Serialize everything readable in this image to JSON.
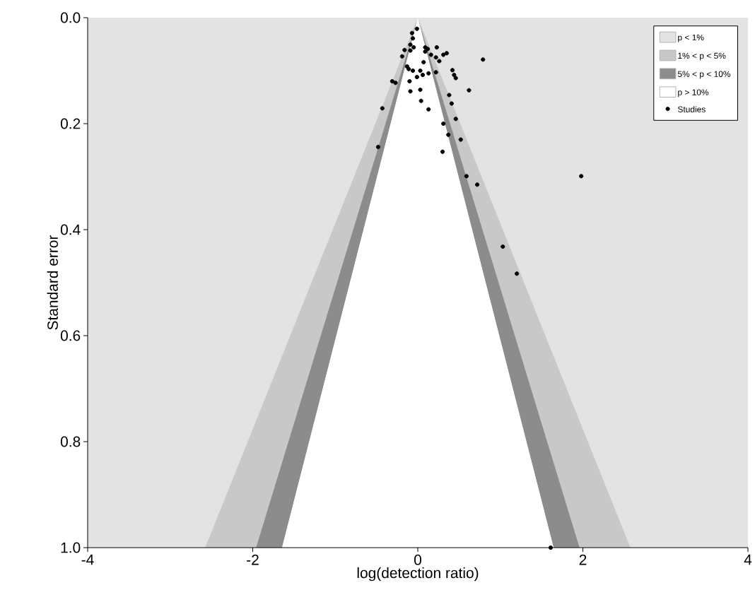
{
  "chart_data": {
    "type": "scatter",
    "xlabel": "log(detection ratio)",
    "ylabel": "Standard error",
    "xlim": [
      -4,
      4
    ],
    "ylim": [
      1,
      0
    ],
    "xticks": [
      -4,
      -2,
      0,
      2,
      4
    ],
    "yticks": [
      {
        "value": 0,
        "label": "0.0"
      },
      0.2,
      0.4,
      0.6,
      0.8,
      {
        "value": 1,
        "label": "1.0"
      }
    ],
    "legend": "top right",
    "grid": false,
    "bands": [
      {
        "axis": "y",
        "from": 0,
        "to": 1,
        "label": "p < 1%",
        "color": "#e3e3e3"
      }
    ],
    "series": [
      {
        "name": "Studies",
        "marker": "circle",
        "color": "#000000",
        "x": [
          -0.01,
          -0.07,
          -0.06,
          -0.09,
          -0.05,
          -0.16,
          -0.09,
          0.09,
          0.12,
          0.09,
          0.23,
          0.16,
          -0.19,
          0.22,
          0.31,
          0.35,
          0.26,
          0.79,
          0.07,
          -0.13,
          -0.11,
          -0.06,
          0.03,
          -0.01,
          0.06,
          0.13,
          0.22,
          0.42,
          0.44,
          0.46,
          -0.31,
          -0.27,
          -0.1,
          0.62,
          -0.09,
          0.03,
          0.38,
          0.41,
          0.04,
          0.13,
          -0.43,
          0.46,
          0.31,
          0.37,
          0.52,
          -0.48,
          0.3,
          0.59,
          0.72,
          1.98,
          1.03,
          1.2,
          1.61
        ],
        "values": [
          0.021,
          0.029,
          0.039,
          0.051,
          0.056,
          0.061,
          0.062,
          0.056,
          0.059,
          0.064,
          0.056,
          0.07,
          0.073,
          0.075,
          0.07,
          0.067,
          0.082,
          0.079,
          0.084,
          0.092,
          0.097,
          0.1,
          0.1,
          0.112,
          0.108,
          0.105,
          0.103,
          0.099,
          0.108,
          0.114,
          0.12,
          0.123,
          0.12,
          0.137,
          0.139,
          0.136,
          0.146,
          0.162,
          0.157,
          0.173,
          0.171,
          0.191,
          0.2,
          0.221,
          0.23,
          0.244,
          0.253,
          0.299,
          0.315,
          0.299,
          0.432,
          0.483,
          1.0
        ]
      },
      {
        "name": "1% < p < 5%",
        "type": "area",
        "color": "#c8c8c8",
        "x": [
          -2.576,
          0,
          2.576
        ],
        "values": [
          1,
          0,
          1
        ]
      },
      {
        "name": "5% < p < 10%",
        "type": "area",
        "color": "#8c8c8c",
        "x": [
          -1.96,
          0,
          1.96
        ],
        "values": [
          1,
          0,
          1
        ]
      },
      {
        "name": "p > 10%",
        "type": "area",
        "color": "#ffffff",
        "x": [
          -1.645,
          0,
          1.645
        ],
        "values": [
          1,
          0,
          1
        ]
      }
    ]
  }
}
